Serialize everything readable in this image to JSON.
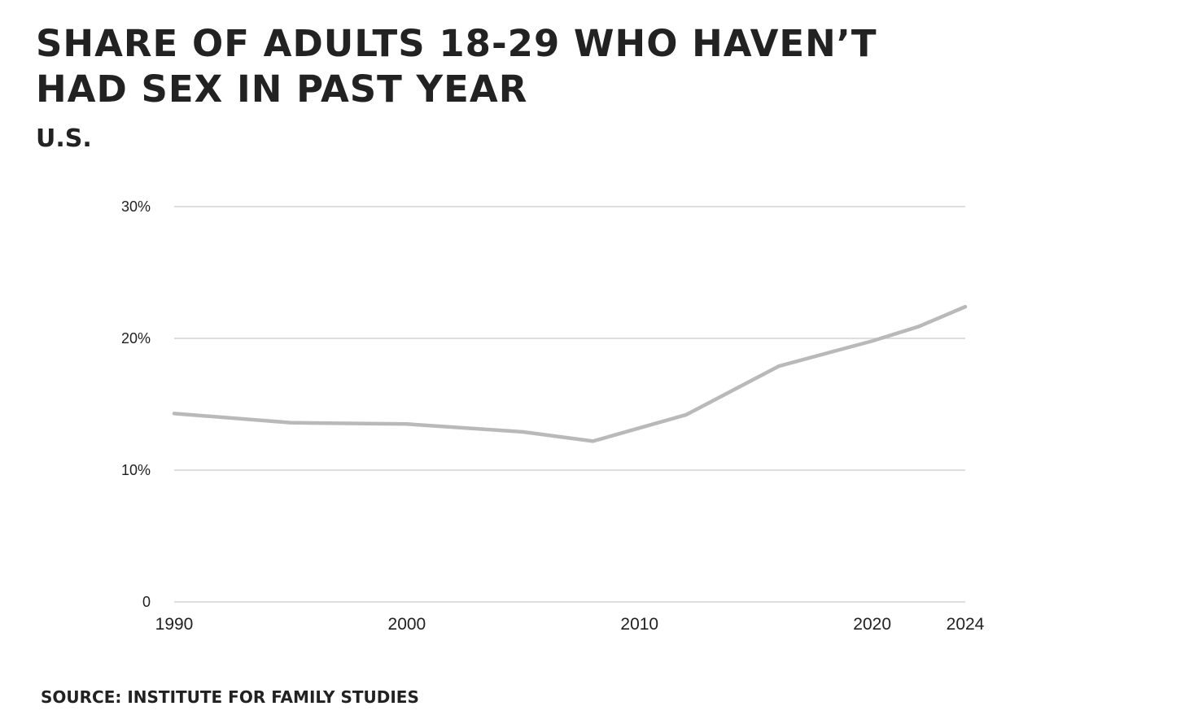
{
  "title": "Share of adults 18-29 who haven’t had sex in past year",
  "subtitle": "U.S.",
  "source": "Source: Institute for Family Studies",
  "colors": {
    "line": "#b9b9b9",
    "grid": "#d3d3d3",
    "text": "#222222"
  },
  "chart_data": {
    "type": "line",
    "title": "Share of adults 18-29 who haven’t had sex in past year",
    "subtitle": "U.S.",
    "xlabel": "",
    "ylabel": "",
    "xlim": [
      1990,
      2024
    ],
    "ylim": [
      0,
      30
    ],
    "grid": true,
    "x_ticks": [
      1990,
      2000,
      2010,
      2020,
      2024
    ],
    "x_tick_labels": [
      "1990",
      "2000",
      "2010",
      "2020",
      "2024"
    ],
    "y_ticks": [
      0,
      10,
      20,
      30
    ],
    "y_tick_labels": [
      "0",
      "10%",
      "20%",
      "30%"
    ],
    "series": [
      {
        "x": [
          1990,
          1995,
          2000,
          2005,
          2008,
          2012,
          2016,
          2020,
          2022,
          2024
        ],
        "values": [
          14.3,
          13.6,
          13.5,
          12.9,
          12.2,
          14.2,
          17.9,
          19.8,
          20.9,
          22.4
        ]
      }
    ]
  }
}
